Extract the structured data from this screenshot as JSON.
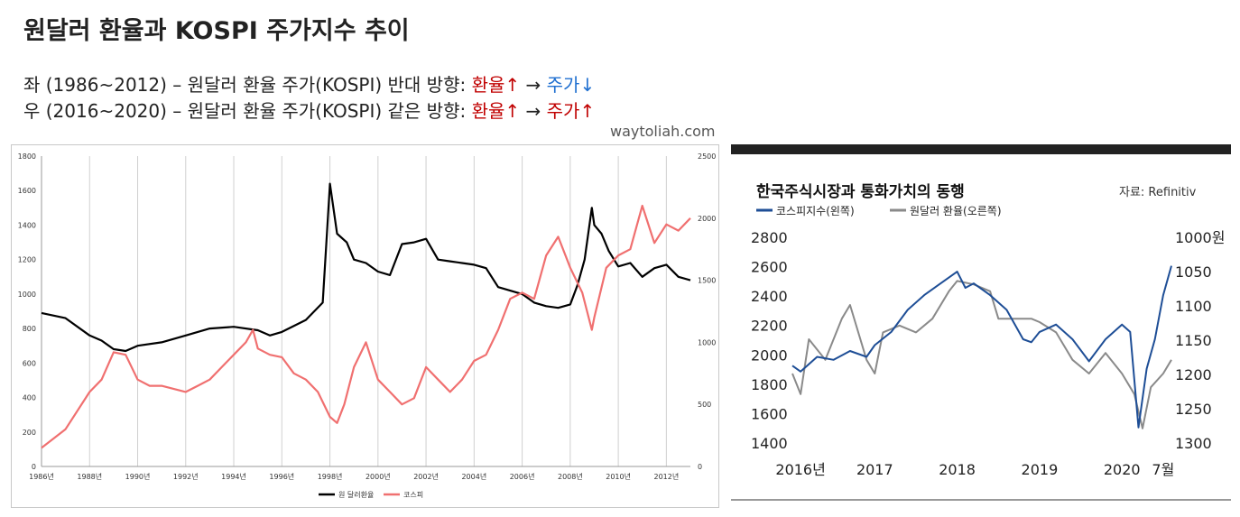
{
  "header": {
    "title": "원달러 환율과 KOSPI 주가지수 추이",
    "line1": {
      "prefix": "좌 (1986~2012) – 원달러 환율 주가(KOSPI) 반대 방향: ",
      "a": "환율↑",
      "arrow": " → ",
      "b": "주가↓"
    },
    "line2": {
      "prefix": "우 (2016~2020) – 원달러 환율 주가(KOSPI) 같은 방향: ",
      "a": "환율↑",
      "arrow": " → ",
      "b": "주가↑"
    },
    "site": "waytoliah.com"
  },
  "colors": {
    "red": "#c00000",
    "blue": "#1f6fd0",
    "black_series": "#000000",
    "pink_series": "#f07070",
    "navy_series": "#1e4e96",
    "gray_series": "#8a8a8a"
  },
  "chart_data": [
    {
      "type": "line",
      "x_ticks": [
        "1986년",
        "1988년",
        "1990년",
        "1992년",
        "1994년",
        "1996년",
        "1998년",
        "2000년",
        "2002년",
        "2004년",
        "2006년",
        "2008년",
        "2010년",
        "2012년"
      ],
      "y_left_ticks": [
        "0",
        "200",
        "400",
        "600",
        "800",
        "1000",
        "1200",
        "1400",
        "1600",
        "1800"
      ],
      "y_right_ticks": [
        "0",
        "500",
        "1000",
        "1500",
        "2000",
        "2500"
      ],
      "ylim_left": [
        0,
        1800
      ],
      "ylim_right": [
        0,
        2500
      ],
      "xlim": [
        1986,
        2013
      ],
      "grid": "vertical",
      "legend_position": "bottom-center",
      "series": [
        {
          "name": "원 달러환율",
          "axis": "left",
          "color": "#000000",
          "points": [
            [
              1986,
              890
            ],
            [
              1987,
              860
            ],
            [
              1988,
              760
            ],
            [
              1988.5,
              730
            ],
            [
              1989,
              680
            ],
            [
              1989.5,
              670
            ],
            [
              1990,
              700
            ],
            [
              1991,
              720
            ],
            [
              1992,
              760
            ],
            [
              1993,
              800
            ],
            [
              1994,
              810
            ],
            [
              1995,
              790
            ],
            [
              1995.5,
              760
            ],
            [
              1996,
              780
            ],
            [
              1997,
              850
            ],
            [
              1997.7,
              950
            ],
            [
              1998,
              1640
            ],
            [
              1998.3,
              1350
            ],
            [
              1998.7,
              1300
            ],
            [
              1999,
              1200
            ],
            [
              1999.5,
              1180
            ],
            [
              2000,
              1130
            ],
            [
              2000.5,
              1110
            ],
            [
              2001,
              1290
            ],
            [
              2001.5,
              1300
            ],
            [
              2002,
              1320
            ],
            [
              2002.5,
              1200
            ],
            [
              2003,
              1190
            ],
            [
              2003.5,
              1180
            ],
            [
              2004,
              1170
            ],
            [
              2004.5,
              1150
            ],
            [
              2005,
              1040
            ],
            [
              2005.5,
              1020
            ],
            [
              2006,
              1000
            ],
            [
              2006.5,
              950
            ],
            [
              2007,
              930
            ],
            [
              2007.5,
              920
            ],
            [
              2008,
              940
            ],
            [
              2008.3,
              1050
            ],
            [
              2008.6,
              1200
            ],
            [
              2008.9,
              1500
            ],
            [
              2009,
              1400
            ],
            [
              2009.3,
              1350
            ],
            [
              2009.6,
              1250
            ],
            [
              2010,
              1160
            ],
            [
              2010.5,
              1180
            ],
            [
              2011,
              1100
            ],
            [
              2011.5,
              1150
            ],
            [
              2012,
              1170
            ],
            [
              2012.5,
              1100
            ],
            [
              2013,
              1080
            ]
          ]
        },
        {
          "name": "코스피",
          "axis": "right",
          "color": "#f07070",
          "points": [
            [
              1986,
              150
            ],
            [
              1987,
              300
            ],
            [
              1988,
              600
            ],
            [
              1988.5,
              700
            ],
            [
              1989,
              920
            ],
            [
              1989.5,
              900
            ],
            [
              1990,
              700
            ],
            [
              1990.5,
              650
            ],
            [
              1991,
              650
            ],
            [
              1992,
              600
            ],
            [
              1992.5,
              650
            ],
            [
              1993,
              700
            ],
            [
              1993.5,
              800
            ],
            [
              1994,
              900
            ],
            [
              1994.5,
              1000
            ],
            [
              1994.8,
              1100
            ],
            [
              1995,
              950
            ],
            [
              1995.5,
              900
            ],
            [
              1996,
              880
            ],
            [
              1996.5,
              750
            ],
            [
              1997,
              700
            ],
            [
              1997.5,
              600
            ],
            [
              1998,
              400
            ],
            [
              1998.3,
              350
            ],
            [
              1998.6,
              500
            ],
            [
              1999,
              800
            ],
            [
              1999.5,
              1000
            ],
            [
              2000,
              700
            ],
            [
              2000.5,
              600
            ],
            [
              2001,
              500
            ],
            [
              2001.5,
              550
            ],
            [
              2002,
              800
            ],
            [
              2002.5,
              700
            ],
            [
              2003,
              600
            ],
            [
              2003.5,
              700
            ],
            [
              2004,
              850
            ],
            [
              2004.5,
              900
            ],
            [
              2005,
              1100
            ],
            [
              2005.5,
              1350
            ],
            [
              2006,
              1400
            ],
            [
              2006.5,
              1350
            ],
            [
              2007,
              1700
            ],
            [
              2007.5,
              1850
            ],
            [
              2008,
              1600
            ],
            [
              2008.5,
              1400
            ],
            [
              2008.9,
              1100
            ],
            [
              2009,
              1200
            ],
            [
              2009.5,
              1600
            ],
            [
              2010,
              1700
            ],
            [
              2010.5,
              1750
            ],
            [
              2011,
              2100
            ],
            [
              2011.5,
              1800
            ],
            [
              2012,
              1950
            ],
            [
              2012.5,
              1900
            ],
            [
              2013,
              2000
            ]
          ]
        }
      ]
    },
    {
      "type": "line",
      "title": "한국주식시장과 통화가치의 동행",
      "source": "자료: Refinitiv",
      "y_left_ticks": [
        "2800",
        "2600",
        "2400",
        "2200",
        "2000",
        "1800",
        "1600",
        "1400"
      ],
      "y_right_ticks": [
        "1000원",
        "1050",
        "1100",
        "1150",
        "1200",
        "1250",
        "1300"
      ],
      "x_ticks": [
        "2016년",
        "2017",
        "2018",
        "2019",
        "2020",
        "7월"
      ],
      "ylim_left": [
        1400,
        2800
      ],
      "ylim_right_inverted": [
        1000,
        1300
      ],
      "xlim": [
        2016,
        2020.6
      ],
      "legend_position": "top-left",
      "series": [
        {
          "name": "코스피지수(왼쪽)",
          "axis": "left",
          "color": "#1e4e96",
          "points": [
            [
              2016,
              1920
            ],
            [
              2016.1,
              1880
            ],
            [
              2016.3,
              1980
            ],
            [
              2016.5,
              1960
            ],
            [
              2016.7,
              2020
            ],
            [
              2016.9,
              1980
            ],
            [
              2017,
              2060
            ],
            [
              2017.2,
              2150
            ],
            [
              2017.4,
              2300
            ],
            [
              2017.6,
              2400
            ],
            [
              2017.8,
              2480
            ],
            [
              2018,
              2560
            ],
            [
              2018.1,
              2450
            ],
            [
              2018.2,
              2480
            ],
            [
              2018.4,
              2400
            ],
            [
              2018.6,
              2300
            ],
            [
              2018.8,
              2100
            ],
            [
              2018.9,
              2080
            ],
            [
              2019,
              2150
            ],
            [
              2019.2,
              2200
            ],
            [
              2019.4,
              2100
            ],
            [
              2019.6,
              1950
            ],
            [
              2019.8,
              2100
            ],
            [
              2020,
              2200
            ],
            [
              2020.1,
              2150
            ],
            [
              2020.2,
              1500
            ],
            [
              2020.3,
              1900
            ],
            [
              2020.4,
              2100
            ],
            [
              2020.5,
              2400
            ],
            [
              2020.6,
              2600
            ]
          ]
        },
        {
          "name": "원달러 환율(오른쪽)",
          "axis": "right",
          "color": "#8a8a8a",
          "points": [
            [
              2016,
              1200
            ],
            [
              2016.1,
              1230
            ],
            [
              2016.2,
              1150
            ],
            [
              2016.4,
              1180
            ],
            [
              2016.6,
              1120
            ],
            [
              2016.7,
              1100
            ],
            [
              2016.9,
              1180
            ],
            [
              2017,
              1200
            ],
            [
              2017.1,
              1140
            ],
            [
              2017.3,
              1130
            ],
            [
              2017.5,
              1140
            ],
            [
              2017.7,
              1120
            ],
            [
              2017.9,
              1080
            ],
            [
              2018,
              1065
            ],
            [
              2018.2,
              1070
            ],
            [
              2018.4,
              1080
            ],
            [
              2018.5,
              1120
            ],
            [
              2018.7,
              1120
            ],
            [
              2018.9,
              1120
            ],
            [
              2019,
              1125
            ],
            [
              2019.2,
              1140
            ],
            [
              2019.4,
              1180
            ],
            [
              2019.6,
              1200
            ],
            [
              2019.8,
              1170
            ],
            [
              2020,
              1200
            ],
            [
              2020.15,
              1230
            ],
            [
              2020.25,
              1280
            ],
            [
              2020.35,
              1220
            ],
            [
              2020.5,
              1200
            ],
            [
              2020.6,
              1180
            ]
          ]
        }
      ]
    }
  ]
}
